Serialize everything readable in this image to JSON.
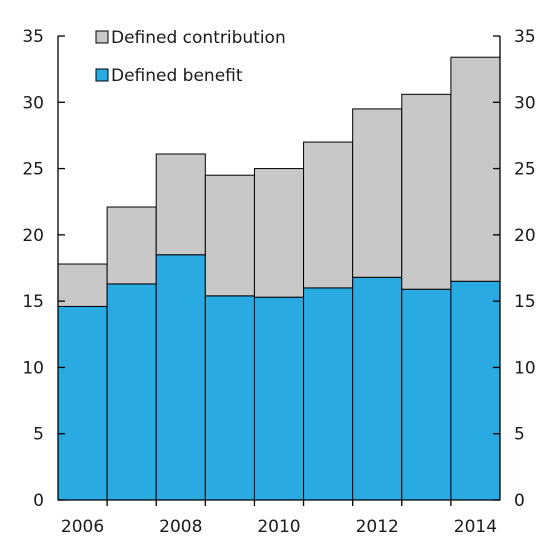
{
  "chart_data": {
    "type": "bar",
    "stacked": true,
    "title": "",
    "xlabel": "",
    "ylabel": "",
    "categories": [
      "2006",
      "2007",
      "2008",
      "2009",
      "2010",
      "2011",
      "2012",
      "2013",
      "2014"
    ],
    "x_tick_labels": [
      "2006",
      "2008",
      "2010",
      "2012",
      "2014"
    ],
    "ylim": [
      0,
      35
    ],
    "y_ticks": [
      0,
      5,
      10,
      15,
      20,
      25,
      30,
      35
    ],
    "y_tick_labels": [
      "0",
      "5",
      "10",
      "15",
      "20",
      "25",
      "30",
      "35"
    ],
    "secondary_y_axis": true,
    "grid": false,
    "legend_position": "top-left",
    "series": [
      {
        "name": "Defined benefit",
        "color": "#29abe2",
        "values": [
          14.6,
          16.3,
          18.5,
          15.4,
          15.3,
          16.0,
          16.8,
          15.9,
          16.5
        ]
      },
      {
        "name": "Defined contribution",
        "color": "#c8c8c8",
        "values": [
          3.2,
          5.8,
          7.6,
          9.1,
          9.7,
          11.0,
          12.7,
          14.7,
          16.9
        ]
      }
    ],
    "legend_order": [
      "Defined contribution",
      "Defined benefit"
    ]
  }
}
